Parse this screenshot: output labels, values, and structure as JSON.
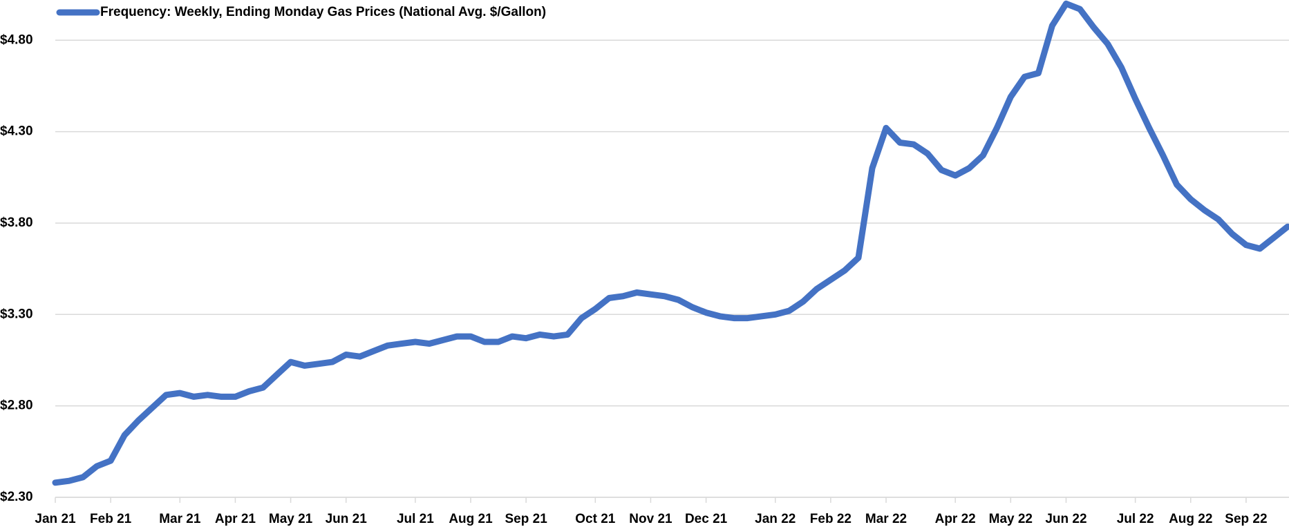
{
  "chart_data": {
    "type": "line",
    "categories": [
      "Jan 21",
      null,
      null,
      null,
      "Feb 21",
      null,
      null,
      null,
      null,
      "Mar 21",
      null,
      null,
      null,
      "Apr 21",
      null,
      null,
      null,
      "May 21",
      null,
      null,
      null,
      "Jun 21",
      null,
      null,
      null,
      null,
      "Jul 21",
      null,
      null,
      null,
      "Aug 21",
      null,
      null,
      null,
      "Sep 21",
      null,
      null,
      null,
      null,
      "Oct 21",
      null,
      null,
      null,
      "Nov 21",
      null,
      null,
      null,
      "Dec 21",
      null,
      null,
      null,
      null,
      "Jan 22",
      null,
      null,
      null,
      "Feb 22",
      null,
      null,
      null,
      "Mar 22",
      null,
      null,
      null,
      null,
      "Apr 22",
      null,
      null,
      null,
      "May 22",
      null,
      null,
      null,
      "Jun 22",
      null,
      null,
      null,
      null,
      "Jul 22",
      null,
      null,
      null,
      "Aug 22",
      null,
      null,
      null,
      "Sep 22",
      null,
      null,
      null
    ],
    "series": [
      {
        "name": "Frequency: Weekly, Ending Monday Gas Prices (National Avg. $/Gallon)",
        "color": "#4472c4",
        "values": [
          2.38,
          2.39,
          2.41,
          2.47,
          2.5,
          2.64,
          2.72,
          2.79,
          2.86,
          2.87,
          2.85,
          2.86,
          2.85,
          2.85,
          2.88,
          2.9,
          2.97,
          3.04,
          3.02,
          3.03,
          3.04,
          3.08,
          3.07,
          3.1,
          3.13,
          3.14,
          3.15,
          3.14,
          3.16,
          3.18,
          3.18,
          3.15,
          3.15,
          3.18,
          3.17,
          3.19,
          3.18,
          3.19,
          3.28,
          3.33,
          3.39,
          3.4,
          3.42,
          3.41,
          3.4,
          3.38,
          3.34,
          3.31,
          3.29,
          3.28,
          3.28,
          3.29,
          3.3,
          3.32,
          3.37,
          3.44,
          3.49,
          3.54,
          3.61,
          4.1,
          4.32,
          4.24,
          4.23,
          4.18,
          4.09,
          4.06,
          4.1,
          4.17,
          4.32,
          4.49,
          4.6,
          4.62,
          4.88,
          5.0,
          4.97,
          4.87,
          4.78,
          4.65,
          4.48,
          4.32,
          4.17,
          4.01,
          3.93,
          3.87,
          3.82,
          3.74,
          3.68,
          3.66,
          3.72,
          3.78
        ]
      }
    ],
    "ylim": [
      2.3,
      5.02
    ],
    "yticks": [
      {
        "value": 2.3,
        "label": "$2.30"
      },
      {
        "value": 2.8,
        "label": "$2.80"
      },
      {
        "value": 3.3,
        "label": "$3.30"
      },
      {
        "value": 3.8,
        "label": "$3.80"
      },
      {
        "value": 4.3,
        "label": "$4.30"
      },
      {
        "value": 4.8,
        "label": "$4.80"
      }
    ],
    "grid": true,
    "legend": "top-left"
  }
}
